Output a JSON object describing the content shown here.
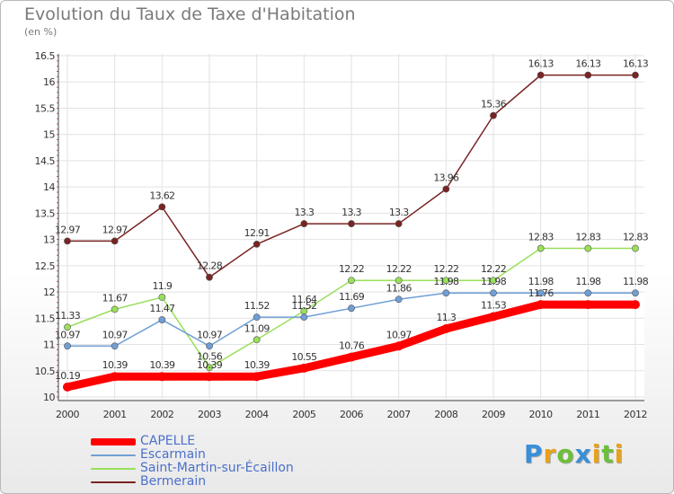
{
  "header": {
    "title": "Evolution du Taux de Taxe d'Habitation",
    "subtitle": "(en %)"
  },
  "chart_data": {
    "type": "line",
    "title": "Evolution du Taux de Taxe d'Habitation",
    "ylabel": "(en %)",
    "xlabel": "",
    "ylim": [
      10,
      16.5
    ],
    "ytick_step": 0.5,
    "grid": true,
    "legend_position": "bottom-left",
    "categories": [
      "2000",
      "2001",
      "2002",
      "2003",
      "2004",
      "2005",
      "2006",
      "2007",
      "2008",
      "2009",
      "2010",
      "2011",
      "2012"
    ],
    "series": [
      {
        "name": "CAPELLE",
        "color": "#ff0000",
        "values": [
          10.19,
          10.39,
          10.39,
          10.39,
          10.39,
          10.55,
          10.76,
          10.97,
          11.3,
          11.53,
          11.76,
          11.76,
          11.76
        ],
        "labels": [
          "10.19",
          "10.39",
          "10.39",
          "10.39",
          "10.39",
          "10.55",
          "10.76",
          "10.97",
          "11.3",
          "11.53",
          "11.76",
          "",
          ""
        ]
      },
      {
        "name": "Escarmain",
        "color": "#6f9fd6",
        "values": [
          10.97,
          10.97,
          11.47,
          10.97,
          11.52,
          11.52,
          11.69,
          11.86,
          11.98,
          11.98,
          11.98,
          11.98,
          11.98
        ],
        "labels": [
          "10.97",
          "10.97",
          "11.47",
          "10.97",
          "11.52",
          "11.52",
          "11.69",
          "11.86",
          "11.98",
          "11.98",
          "11.98",
          "11.98",
          "11.98"
        ]
      },
      {
        "name": "Saint-Martin-sur-Écaillon",
        "color": "#99e05a",
        "values": [
          11.33,
          11.67,
          11.9,
          10.56,
          11.09,
          11.64,
          12.22,
          12.22,
          12.22,
          12.22,
          12.83,
          12.83,
          12.83
        ],
        "labels": [
          "11.33",
          "11.67",
          "11.9",
          "10.56",
          "11.09",
          "11.64",
          "12.22",
          "12.22",
          "12.22",
          "12.22",
          "12.83",
          "12.83",
          "12.83"
        ]
      },
      {
        "name": "Bermerain",
        "color": "#7a2323",
        "values": [
          12.97,
          12.97,
          13.62,
          12.28,
          12.91,
          13.3,
          13.3,
          13.3,
          13.96,
          15.36,
          16.13,
          16.13,
          16.13
        ],
        "labels": [
          "12.97",
          "12.97",
          "13.62",
          "12.28",
          "12.91",
          "13.3",
          "13.3",
          "13.3",
          "13.96",
          "15.36",
          "16.13",
          "16.13",
          "16.13"
        ]
      }
    ]
  },
  "logo": {
    "letters": [
      "P",
      "r",
      "o",
      "x",
      "i",
      "t",
      "i"
    ],
    "colors": [
      "#3a8fd6",
      "#e8a21a",
      "#6cbf3a",
      "#3a8fd6",
      "#e8a21a",
      "#6cbf3a",
      "#e8a21a"
    ]
  }
}
